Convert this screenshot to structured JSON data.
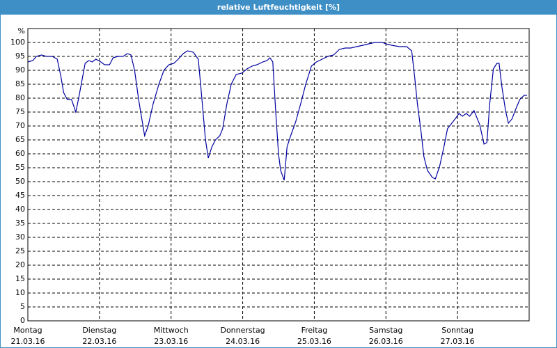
{
  "chart_data": {
    "type": "line",
    "title": "relative Luftfeuchtigkeit [%]",
    "ylabel": "%",
    "x": [
      0,
      0.07,
      0.12,
      0.19,
      0.26,
      0.34,
      0.41,
      0.46,
      0.5,
      0.55,
      0.61,
      0.67,
      0.71,
      0.76,
      0.8,
      0.85,
      0.9,
      0.95,
      1.02,
      1.07,
      1.14,
      1.19,
      1.26,
      1.33,
      1.39,
      1.44,
      1.49,
      1.55,
      1.63,
      1.68,
      1.75,
      1.83,
      1.9,
      1.97,
      2.04,
      2.1,
      2.17,
      2.23,
      2.31,
      2.38,
      2.43,
      2.48,
      2.52,
      2.57,
      2.62,
      2.68,
      2.72,
      2.78,
      2.84,
      2.91,
      2.99,
      3.06,
      3.13,
      3.2,
      3.28,
      3.34,
      3.38,
      3.42,
      3.46,
      3.5,
      3.53,
      3.58,
      3.62,
      3.67,
      3.74,
      3.81,
      3.88,
      3.96,
      4.03,
      4.11,
      4.19,
      4.27,
      4.35,
      4.43,
      4.51,
      4.59,
      4.68,
      4.76,
      4.85,
      4.95,
      5.0,
      5.08,
      5.19,
      5.29,
      5.36,
      5.4,
      5.44,
      5.49,
      5.53,
      5.58,
      5.65,
      5.69,
      5.75,
      5.81,
      5.86,
      5.92,
      5.98,
      6.02,
      6.07,
      6.12,
      6.17,
      6.23,
      6.31,
      6.37,
      6.41,
      6.45,
      6.5,
      6.55,
      6.58,
      6.62,
      6.67,
      6.71,
      6.76,
      6.82,
      6.87,
      6.93,
      6.97
    ],
    "series": [
      {
        "name": "relative Luftfeuchtigkeit",
        "color": "#0000a0",
        "values": [
          93,
          93.5,
          95,
          95.5,
          95,
          95,
          94,
          88,
          82,
          79.5,
          79.5,
          75,
          80,
          87,
          92.5,
          93.5,
          93,
          94,
          93,
          92,
          92,
          94.5,
          95,
          95,
          96,
          95.5,
          90,
          79,
          66.5,
          70,
          78,
          85,
          90,
          92,
          92.5,
          94,
          96,
          97,
          96.5,
          94,
          80,
          65,
          58.5,
          62.5,
          65,
          66.5,
          69,
          78,
          85,
          88.5,
          89,
          90.5,
          91.5,
          92,
          93,
          93.5,
          94.5,
          93,
          75.5,
          60,
          54,
          50.5,
          62.5,
          66.5,
          71.5,
          78,
          85,
          91.5,
          93,
          94,
          95,
          95.5,
          97.5,
          98,
          98,
          98.5,
          99,
          99.5,
          100,
          100,
          99.5,
          99,
          98.5,
          98.5,
          97,
          88,
          78,
          68,
          59,
          54,
          51.5,
          51,
          55.5,
          62.5,
          69,
          71,
          73,
          74.5,
          73.5,
          74.5,
          73.5,
          75.5,
          70.5,
          63.5,
          64,
          78,
          90.5,
          92.5,
          92.5,
          84,
          75.5,
          71,
          72.5,
          76.5,
          79.5,
          81,
          81
        ]
      }
    ],
    "xlim": [
      0,
      7
    ],
    "xticks": [
      {
        "value": 0,
        "label": "21.03.16"
      },
      {
        "value": 1,
        "label": "22.03.16"
      },
      {
        "value": 2,
        "label": "23.03.16"
      },
      {
        "value": 3,
        "label": "24.03.16"
      },
      {
        "value": 4,
        "label": "25.03.16"
      },
      {
        "value": 5,
        "label": "26.03.16"
      },
      {
        "value": 6,
        "label": "27.03.16"
      }
    ],
    "xtick_weekdays": [
      "Montag",
      "Dienstag",
      "Mittwoch",
      "Donnerstag",
      "Freitag",
      "Samstag",
      "Sonntag"
    ],
    "ylim": [
      0,
      105
    ],
    "yticks": [
      0,
      5,
      10,
      15,
      20,
      25,
      30,
      35,
      40,
      45,
      50,
      55,
      60,
      65,
      70,
      75,
      80,
      85,
      90,
      95,
      100
    ],
    "grid": true
  }
}
